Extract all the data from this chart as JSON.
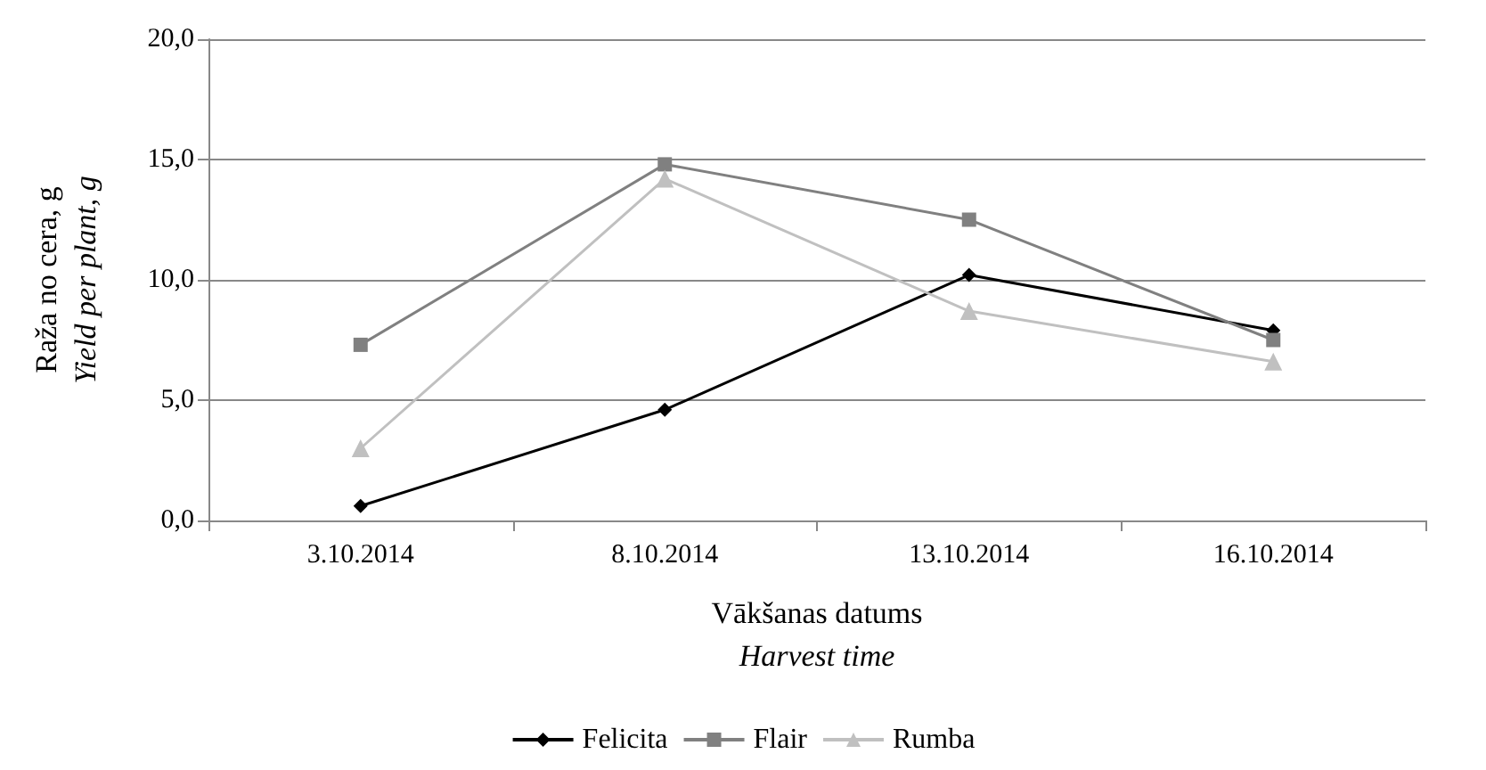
{
  "chart_data": {
    "type": "line",
    "xlabel": "Vākšanas datums\nHarvest time",
    "ylabel": "Raža no cera, g\nYield per plant, g",
    "categories": [
      "3.10.2014",
      "8.10.2014",
      "13.10.2014",
      "16.10.2014"
    ],
    "series": [
      {
        "name": "Felicita",
        "color": "#000000",
        "marker": "diamond",
        "values": [
          0.6,
          4.6,
          10.2,
          7.9
        ]
      },
      {
        "name": "Flair",
        "color": "#808080",
        "marker": "square",
        "values": [
          7.3,
          14.8,
          12.5,
          7.5
        ]
      },
      {
        "name": "Rumba",
        "color": "#c0c0c0",
        "marker": "triangle",
        "values": [
          3.0,
          14.2,
          8.7,
          6.6
        ]
      }
    ],
    "ylim": [
      0,
      20
    ],
    "yticks": [
      {
        "value": 0,
        "label": "0,0"
      },
      {
        "value": 5,
        "label": "5,0"
      },
      {
        "value": 10,
        "label": "10,0"
      },
      {
        "value": 15,
        "label": "15,0"
      },
      {
        "value": 20,
        "label": "20,0"
      }
    ],
    "grid": "y",
    "legend": "bottom",
    "line_style": "solid"
  }
}
